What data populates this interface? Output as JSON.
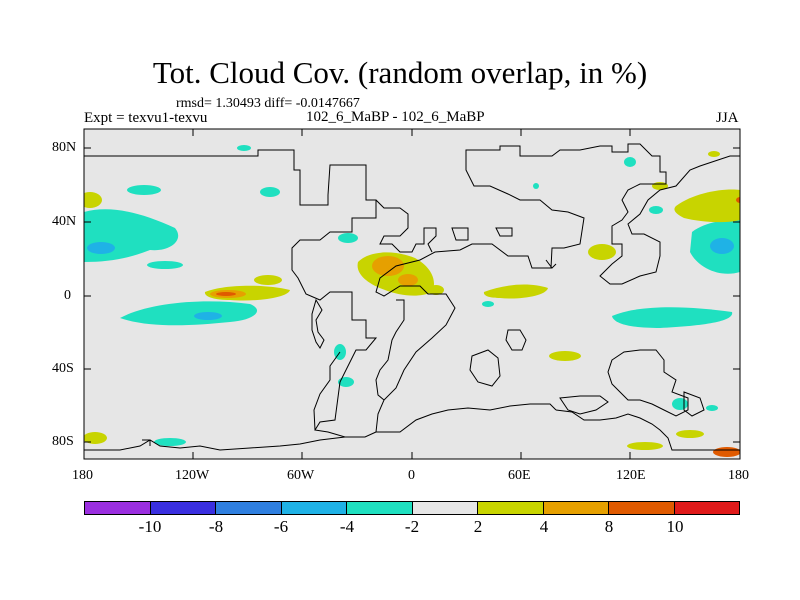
{
  "header": {
    "title": "Tot. Cloud Cov. (random overlap, in %)",
    "stats": "rmsd= 1.30493 diff= -0.0147667",
    "expt": "Expt = texvu1-texvu",
    "center_label": "102_6_MaBP - 102_6_MaBP",
    "season": "JJA"
  },
  "axes": {
    "lat_ticks": [
      "80N",
      "40N",
      "0",
      "40S",
      "80S"
    ],
    "lon_ticks": [
      "180",
      "120W",
      "60W",
      "0",
      "60E",
      "120E",
      "180"
    ]
  },
  "colorbar": {
    "colors": [
      "#9b2fe0",
      "#3a2fe0",
      "#2f7fe0",
      "#1fb2e6",
      "#1fe0c0",
      "#e6e6e6",
      "#c8d400",
      "#e6a000",
      "#e05a00",
      "#e01a1a"
    ],
    "labels": [
      "-10",
      "-8",
      "-6",
      "-4",
      "-2",
      "2",
      "4",
      "8",
      "10"
    ]
  },
  "map": {
    "background": "#e6e6e6",
    "contour_color": "#000000"
  }
}
